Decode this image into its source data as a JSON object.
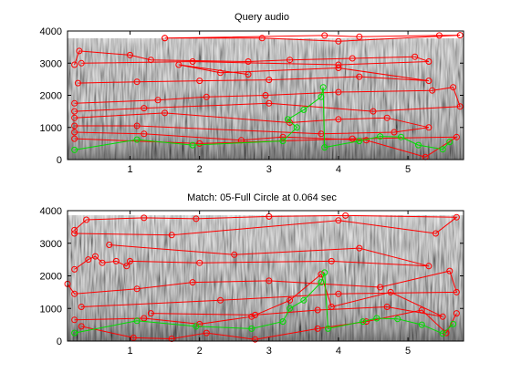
{
  "chart_data": [
    {
      "type": "scatter",
      "title": "Query audio",
      "xlim": [
        0.1,
        5.8
      ],
      "ylim": [
        0,
        4000
      ],
      "xticks": [
        1,
        2,
        3,
        4,
        5
      ],
      "yticks": [
        0,
        1000,
        2000,
        3000,
        4000
      ],
      "background": "grayscale spectrogram",
      "series": [
        {
          "color": "#ff0000",
          "marker": "circle",
          "segments": [
            [
              [
                0.2,
                2950
              ],
              [
                0.27,
                3380
              ],
              [
                1.0,
                3250
              ],
              [
                1.3,
                3100
              ],
              [
                2.7,
                3050
              ],
              [
                3.3,
                3100
              ],
              [
                4.2,
                3150
              ],
              [
                5.1,
                3200
              ],
              [
                5.3,
                3050
              ],
              [
                4.0,
                2950
              ],
              [
                1.9,
                3050
              ],
              [
                0.3,
                3000
              ]
            ],
            [
              [
                1.5,
                3780
              ],
              [
                3.8,
                3860
              ],
              [
                4.3,
                3820
              ],
              [
                5.45,
                3860
              ],
              [
                5.75,
                3870
              ],
              [
                4.0,
                3680
              ],
              [
                2.9,
                3780
              ],
              [
                1.5,
                3780
              ]
            ],
            [
              [
                0.25,
                2380
              ],
              [
                1.1,
                2420
              ],
              [
                2.0,
                2450
              ],
              [
                3.0,
                2480
              ],
              [
                4.3,
                2580
              ],
              [
                5.3,
                2450
              ],
              [
                4.0,
                2850
              ],
              [
                2.3,
                2700
              ],
              [
                1.7,
                2950
              ],
              [
                2.7,
                2650
              ]
            ],
            [
              [
                0.2,
                1750
              ],
              [
                1.4,
                1850
              ],
              [
                2.1,
                1950
              ],
              [
                2.95,
                2000
              ],
              [
                4.0,
                2100
              ],
              [
                5.35,
                2150
              ],
              [
                5.65,
                2250
              ],
              [
                5.75,
                1650
              ],
              [
                4.5,
                1500
              ],
              [
                3.0,
                1750
              ],
              [
                1.2,
                1600
              ],
              [
                0.2,
                1500
              ]
            ],
            [
              [
                0.2,
                1300
              ],
              [
                1.5,
                1450
              ],
              [
                3.3,
                1150
              ],
              [
                4.0,
                1250
              ],
              [
                4.7,
                1300
              ],
              [
                5.3,
                1000
              ],
              [
                4.8,
                850
              ],
              [
                3.75,
                800
              ],
              [
                1.1,
                1050
              ],
              [
                0.2,
                1050
              ]
            ],
            [
              [
                0.2,
                850
              ],
              [
                1.2,
                800
              ],
              [
                2.6,
                600
              ],
              [
                3.2,
                700
              ],
              [
                4.4,
                600
              ],
              [
                5.25,
                80
              ],
              [
                5.7,
                700
              ],
              [
                4.2,
                650
              ],
              [
                2.0,
                500
              ],
              [
                0.2,
                650
              ]
            ]
          ]
        },
        {
          "color": "#00dd00",
          "marker": "circle",
          "segments": [
            [
              [
                0.2,
                300
              ],
              [
                1.1,
                620
              ],
              [
                1.9,
                450
              ],
              [
                3.2,
                580
              ],
              [
                3.4,
                1000
              ],
              [
                3.27,
                1250
              ],
              [
                3.5,
                1550
              ],
              [
                3.75,
                1950
              ],
              [
                3.78,
                2250
              ],
              [
                3.8,
                380
              ],
              [
                4.3,
                580
              ],
              [
                4.6,
                720
              ],
              [
                4.9,
                700
              ],
              [
                5.15,
                450
              ],
              [
                5.5,
                320
              ],
              [
                5.6,
                550
              ]
            ]
          ]
        }
      ]
    },
    {
      "type": "scatter",
      "title": "Match: 05-Full Circle at 0.064 sec",
      "xlim": [
        0.1,
        5.8
      ],
      "ylim": [
        0,
        4000
      ],
      "xticks": [
        1,
        2,
        3,
        4,
        5
      ],
      "yticks": [
        0,
        1000,
        2000,
        3000,
        4000
      ],
      "background": "grayscale spectrogram",
      "series": [
        {
          "color": "#ff0000",
          "marker": "circle",
          "segments": [
            [
              [
                0.2,
                3400
              ],
              [
                0.37,
                3720
              ],
              [
                1.2,
                3780
              ],
              [
                1.95,
                3750
              ],
              [
                3.0,
                3820
              ],
              [
                4.1,
                3850
              ],
              [
                5.7,
                3800
              ],
              [
                5.4,
                3300
              ],
              [
                4.0,
                3700
              ],
              [
                1.6,
                3250
              ],
              [
                0.2,
                3300
              ]
            ],
            [
              [
                0.2,
                2200
              ],
              [
                0.4,
                2500
              ],
              [
                0.5,
                2600
              ],
              [
                0.6,
                2400
              ],
              [
                0.8,
                2450
              ],
              [
                0.95,
                2300
              ],
              [
                1.0,
                2450
              ],
              [
                2.0,
                2400
              ],
              [
                3.9,
                2450
              ],
              [
                5.3,
                2300
              ],
              [
                4.3,
                2850
              ],
              [
                2.5,
                2650
              ],
              [
                0.7,
                2950
              ]
            ],
            [
              [
                0.1,
                1750
              ],
              [
                0.2,
                1450
              ],
              [
                1.1,
                1600
              ],
              [
                1.9,
                1800
              ],
              [
                3.0,
                1850
              ],
              [
                4.6,
                1650
              ],
              [
                5.6,
                2150
              ],
              [
                5.7,
                1500
              ],
              [
                4.0,
                1450
              ],
              [
                2.3,
                1250
              ],
              [
                0.3,
                1050
              ]
            ],
            [
              [
                0.2,
                650
              ],
              [
                1.2,
                700
              ],
              [
                2.0,
                520
              ],
              [
                2.75,
                750
              ],
              [
                3.3,
                1250
              ],
              [
                3.75,
                2050
              ],
              [
                3.9,
                1050
              ],
              [
                4.75,
                1500
              ],
              [
                5.5,
                750
              ],
              [
                4.7,
                1050
              ],
              [
                3.7,
                950
              ],
              [
                2.8,
                800
              ],
              [
                1.3,
                850
              ]
            ],
            [
              [
                0.3,
                450
              ],
              [
                1.05,
                100
              ],
              [
                1.6,
                70
              ],
              [
                2.1,
                250
              ],
              [
                2.8,
                50
              ],
              [
                3.7,
                380
              ],
              [
                4.4,
                600
              ],
              [
                5.2,
                950
              ],
              [
                5.55,
                250
              ],
              [
                5.7,
                850
              ]
            ]
          ]
        },
        {
          "color": "#00dd00",
          "marker": "circle",
          "segments": [
            [
              [
                0.2,
                250
              ],
              [
                1.1,
                620
              ],
              [
                1.95,
                450
              ],
              [
                2.75,
                380
              ],
              [
                3.2,
                600
              ],
              [
                3.3,
                1000
              ],
              [
                3.5,
                1250
              ],
              [
                3.75,
                1800
              ],
              [
                3.8,
                2100
              ],
              [
                3.85,
                380
              ],
              [
                4.35,
                600
              ],
              [
                4.55,
                700
              ],
              [
                4.85,
                680
              ],
              [
                5.2,
                500
              ],
              [
                5.5,
                230
              ],
              [
                5.65,
                520
              ]
            ]
          ]
        }
      ]
    }
  ]
}
